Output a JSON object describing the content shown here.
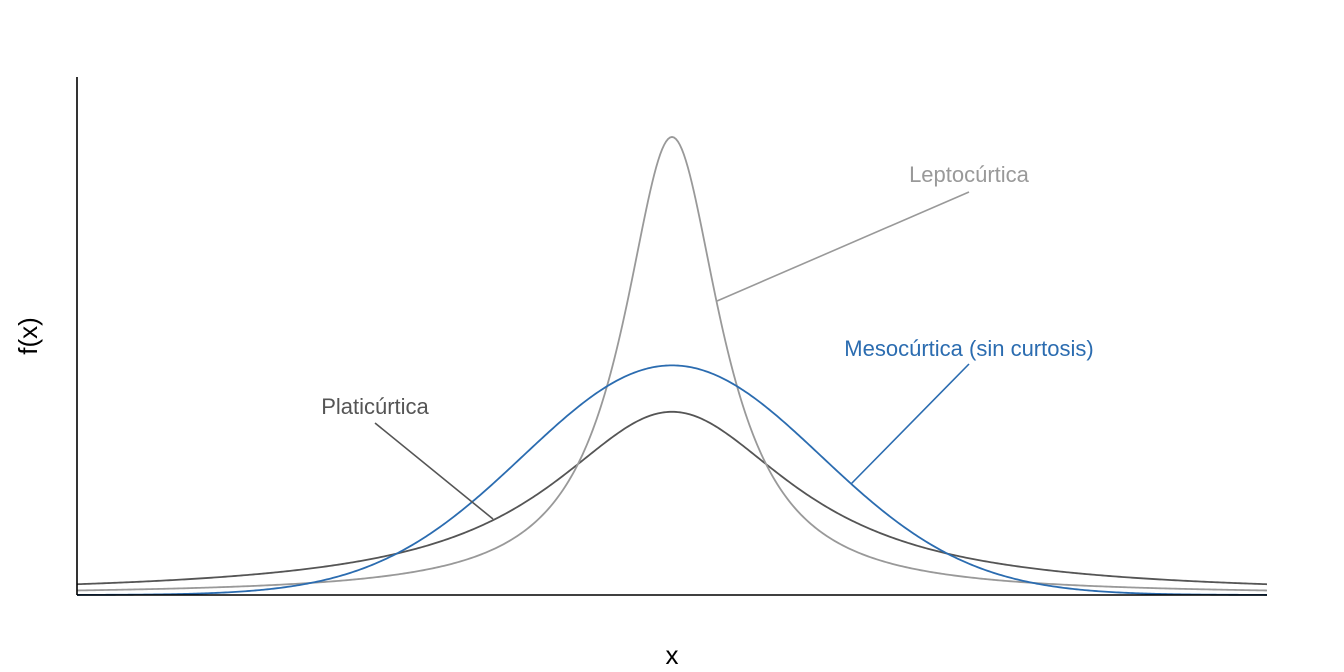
{
  "chart_data": {
    "type": "line",
    "title": "",
    "xlabel": "x",
    "ylabel": "f(x)",
    "xlim": [
      -4,
      4
    ],
    "ylim": [
      0,
      0.9
    ],
    "grid": false,
    "legend": "none",
    "series": [
      {
        "name": "Platicúrtica",
        "distribution": "cauchy",
        "location": 0,
        "scale": 1,
        "color": "#555555"
      },
      {
        "name": "Leptocúrtica",
        "distribution": "cauchy",
        "location": 0,
        "scale": 0.4,
        "color": "#999999"
      },
      {
        "name": "Mesocúrtica (sin curtosis)",
        "distribution": "normal",
        "mean": 0,
        "sd": 1,
        "color": "#2b6cb0"
      }
    ]
  }
}
